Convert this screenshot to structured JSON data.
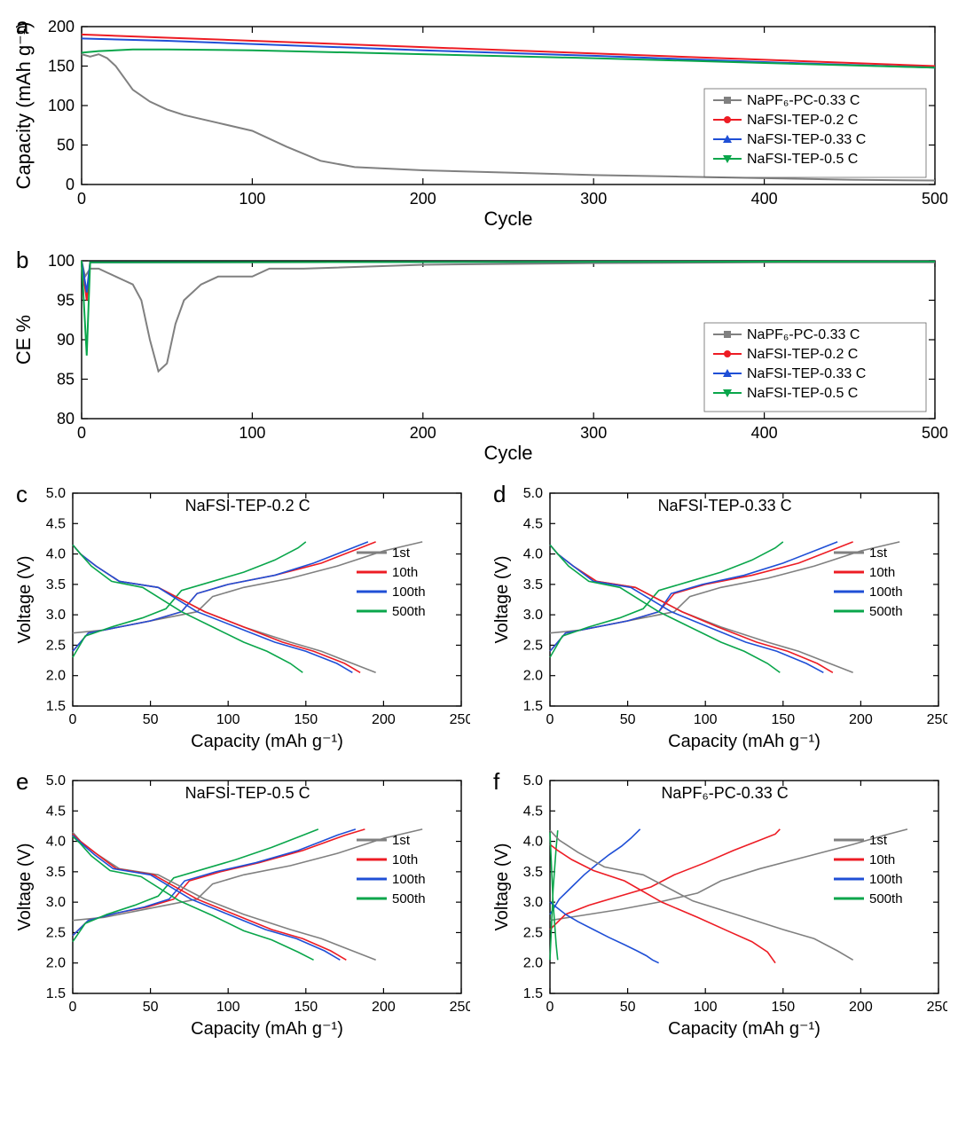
{
  "colors": {
    "gray": "#808080",
    "red": "#ed1c24",
    "blue": "#1f4fd6",
    "green": "#0aa64b",
    "axis": "#000000",
    "bg": "#ffffff"
  },
  "panel_a": {
    "type": "line",
    "label": "a",
    "xlabel": "Cycle",
    "ylabel": "Capacity (mAh g⁻¹)",
    "xlim": [
      0,
      500
    ],
    "xtick_step": 100,
    "ylim": [
      0,
      200
    ],
    "ytick_step": 50,
    "legend": [
      {
        "label": "NaPF₆-PC-0.33 C",
        "color": "#808080",
        "marker": "square"
      },
      {
        "label": "NaFSI-TEP-0.2 C",
        "color": "#ed1c24",
        "marker": "circle"
      },
      {
        "label": "NaFSI-TEP-0.33 C",
        "color": "#1f4fd6",
        "marker": "triangle-up"
      },
      {
        "label": "NaFSI-TEP-0.5 C",
        "color": "#0aa64b",
        "marker": "triangle-down"
      }
    ],
    "series": {
      "napf6_pc_033": {
        "color": "#808080",
        "x": [
          0,
          5,
          10,
          15,
          20,
          25,
          30,
          40,
          50,
          60,
          80,
          100,
          120,
          140,
          160,
          200,
          250,
          300,
          350,
          400,
          450,
          500
        ],
        "y": [
          165,
          162,
          165,
          160,
          150,
          135,
          120,
          105,
          95,
          88,
          78,
          68,
          48,
          30,
          22,
          18,
          15,
          12,
          10,
          8,
          6,
          5
        ]
      },
      "nafsi_tep_02": {
        "color": "#ed1c24",
        "x": [
          0,
          50,
          100,
          200,
          300,
          400,
          500
        ],
        "y": [
          190,
          186,
          182,
          174,
          166,
          158,
          150
        ]
      },
      "nafsi_tep_033": {
        "color": "#1f4fd6",
        "x": [
          0,
          50,
          100,
          200,
          300,
          400,
          500
        ],
        "y": [
          185,
          182,
          178,
          170,
          163,
          155,
          148
        ]
      },
      "nafsi_tep_05": {
        "color": "#0aa64b",
        "x": [
          0,
          10,
          30,
          50,
          100,
          200,
          300,
          400,
          500
        ],
        "y": [
          167,
          169,
          171,
          171,
          170,
          165,
          160,
          154,
          148
        ]
      }
    },
    "label_fontsize": 22,
    "tick_fontsize": 18
  },
  "panel_b": {
    "type": "line",
    "label": "b",
    "xlabel": "Cycle",
    "ylabel": "CE %",
    "xlim": [
      0,
      500
    ],
    "xtick_step": 100,
    "ylim": [
      80,
      100
    ],
    "ytick_step": 5,
    "yticks": [
      80,
      85,
      90,
      95,
      100
    ],
    "legend": [
      {
        "label": "NaPF₆-PC-0.33 C",
        "color": "#808080",
        "marker": "square"
      },
      {
        "label": "NaFSI-TEP-0.2 C",
        "color": "#ed1c24",
        "marker": "circle"
      },
      {
        "label": "NaFSI-TEP-0.33 C",
        "color": "#1f4fd6",
        "marker": "triangle-up"
      },
      {
        "label": "NaFSI-TEP-0.5 C",
        "color": "#0aa64b",
        "marker": "triangle-down"
      }
    ],
    "series": {
      "napf6_pc_033": {
        "color": "#808080",
        "x": [
          0,
          2,
          5,
          10,
          15,
          20,
          25,
          30,
          35,
          40,
          45,
          50,
          55,
          60,
          70,
          80,
          90,
          100,
          110,
          130,
          200,
          300,
          400,
          500
        ],
        "y": [
          100,
          98,
          99,
          99,
          98.5,
          98,
          97.5,
          97,
          95,
          90,
          86,
          87,
          92,
          95,
          97,
          98,
          98,
          98,
          99,
          99,
          99.5,
          99.7,
          99.8,
          99.8
        ]
      },
      "nafsi_tep_02": {
        "color": "#ed1c24",
        "x": [
          0,
          3,
          5,
          500
        ],
        "y": [
          100,
          95,
          99.8,
          99.9
        ]
      },
      "nafsi_tep_033": {
        "color": "#1f4fd6",
        "x": [
          0,
          3,
          5,
          500
        ],
        "y": [
          100,
          96,
          99.8,
          99.9
        ]
      },
      "nafsi_tep_05": {
        "color": "#0aa64b",
        "x": [
          0,
          3,
          5,
          500
        ],
        "y": [
          100,
          88,
          99.8,
          99.9
        ]
      }
    },
    "label_fontsize": 22,
    "tick_fontsize": 18
  },
  "small_common": {
    "type": "line",
    "xlabel": "Capacity (mAh g⁻¹)",
    "ylabel": "Voltage (V)",
    "xlim": [
      0,
      250
    ],
    "xtick_step": 50,
    "ylim": [
      1.5,
      5.0
    ],
    "ytick_step": 0.5,
    "legend": [
      {
        "label": "1st",
        "color": "#808080"
      },
      {
        "label": "10th",
        "color": "#ed1c24"
      },
      {
        "label": "100th",
        "color": "#1f4fd6"
      },
      {
        "label": "500th",
        "color": "#0aa64b"
      }
    ],
    "label_fontsize": 20,
    "tick_fontsize": 16
  },
  "panel_c": {
    "label": "c",
    "title": "NaFSI-TEP-0.2 C",
    "charge": {
      "1st": {
        "color": "#808080",
        "x": [
          0,
          20,
          40,
          60,
          80,
          90,
          110,
          140,
          170,
          200,
          225
        ],
        "y": [
          2.7,
          2.75,
          2.85,
          2.95,
          3.05,
          3.3,
          3.45,
          3.6,
          3.8,
          4.05,
          4.2
        ]
      },
      "10th": {
        "color": "#ed1c24",
        "x": [
          0,
          10,
          30,
          50,
          70,
          80,
          100,
          130,
          160,
          185,
          195
        ],
        "y": [
          2.4,
          2.7,
          2.8,
          2.9,
          3.05,
          3.35,
          3.5,
          3.65,
          3.85,
          4.1,
          4.2
        ]
      },
      "100th": {
        "color": "#1f4fd6",
        "x": [
          0,
          10,
          30,
          50,
          70,
          80,
          100,
          130,
          155,
          180,
          190
        ],
        "y": [
          2.4,
          2.7,
          2.8,
          2.9,
          3.05,
          3.35,
          3.5,
          3.65,
          3.85,
          4.1,
          4.2
        ]
      },
      "500th": {
        "color": "#0aa64b",
        "x": [
          0,
          8,
          25,
          45,
          60,
          70,
          90,
          110,
          130,
          145,
          150
        ],
        "y": [
          2.3,
          2.65,
          2.8,
          2.95,
          3.1,
          3.4,
          3.55,
          3.7,
          3.9,
          4.1,
          4.2
        ]
      }
    },
    "discharge": {
      "1st": {
        "color": "#808080",
        "x": [
          0,
          5,
          15,
          30,
          55,
          85,
          110,
          140,
          160,
          180,
          195
        ],
        "y": [
          4.15,
          4.0,
          3.8,
          3.55,
          3.45,
          3.05,
          2.8,
          2.55,
          2.4,
          2.2,
          2.05
        ]
      },
      "10th": {
        "color": "#ed1c24",
        "x": [
          0,
          5,
          15,
          30,
          55,
          85,
          110,
          135,
          155,
          175,
          185
        ],
        "y": [
          4.15,
          4.0,
          3.8,
          3.55,
          3.45,
          3.05,
          2.8,
          2.55,
          2.4,
          2.2,
          2.05
        ]
      },
      "100th": {
        "color": "#1f4fd6",
        "x": [
          0,
          5,
          15,
          30,
          55,
          80,
          105,
          130,
          150,
          170,
          180
        ],
        "y": [
          4.15,
          4.0,
          3.8,
          3.55,
          3.45,
          3.05,
          2.8,
          2.55,
          2.4,
          2.2,
          2.05
        ]
      },
      "500th": {
        "color": "#0aa64b",
        "x": [
          0,
          5,
          12,
          25,
          45,
          70,
          90,
          110,
          125,
          140,
          148
        ],
        "y": [
          4.15,
          4.0,
          3.8,
          3.55,
          3.45,
          3.05,
          2.8,
          2.55,
          2.4,
          2.2,
          2.05
        ]
      }
    }
  },
  "panel_d": {
    "label": "d",
    "title": "NaFSI-TEP-0.33 C",
    "charge": {
      "1st": {
        "color": "#808080",
        "x": [
          0,
          20,
          40,
          60,
          80,
          90,
          110,
          140,
          170,
          200,
          225
        ],
        "y": [
          2.7,
          2.75,
          2.85,
          2.95,
          3.05,
          3.3,
          3.45,
          3.6,
          3.8,
          4.05,
          4.2
        ]
      },
      "10th": {
        "color": "#ed1c24",
        "x": [
          0,
          10,
          30,
          50,
          70,
          80,
          100,
          130,
          160,
          185,
          195
        ],
        "y": [
          2.4,
          2.7,
          2.8,
          2.9,
          3.05,
          3.35,
          3.5,
          3.65,
          3.85,
          4.1,
          4.2
        ]
      },
      "100th": {
        "color": "#1f4fd6",
        "x": [
          0,
          10,
          30,
          50,
          70,
          78,
          98,
          125,
          150,
          175,
          185
        ],
        "y": [
          2.4,
          2.7,
          2.8,
          2.9,
          3.05,
          3.35,
          3.5,
          3.65,
          3.85,
          4.1,
          4.2
        ]
      },
      "500th": {
        "color": "#0aa64b",
        "x": [
          0,
          8,
          25,
          45,
          60,
          70,
          90,
          110,
          130,
          145,
          150
        ],
        "y": [
          2.3,
          2.65,
          2.8,
          2.95,
          3.1,
          3.4,
          3.55,
          3.7,
          3.9,
          4.1,
          4.2
        ]
      }
    },
    "discharge": {
      "1st": {
        "color": "#808080",
        "x": [
          0,
          5,
          15,
          30,
          55,
          85,
          110,
          140,
          160,
          180,
          195
        ],
        "y": [
          4.15,
          4.0,
          3.8,
          3.55,
          3.45,
          3.05,
          2.8,
          2.55,
          2.4,
          2.2,
          2.05
        ]
      },
      "10th": {
        "color": "#ed1c24",
        "x": [
          0,
          5,
          15,
          30,
          55,
          85,
          108,
          133,
          153,
          172,
          182
        ],
        "y": [
          4.15,
          4.0,
          3.8,
          3.55,
          3.45,
          3.05,
          2.8,
          2.55,
          2.4,
          2.2,
          2.05
        ]
      },
      "100th": {
        "color": "#1f4fd6",
        "x": [
          0,
          5,
          15,
          28,
          52,
          78,
          102,
          126,
          146,
          165,
          176
        ],
        "y": [
          4.15,
          4.0,
          3.8,
          3.55,
          3.45,
          3.05,
          2.8,
          2.55,
          2.4,
          2.2,
          2.05
        ]
      },
      "500th": {
        "color": "#0aa64b",
        "x": [
          0,
          5,
          12,
          25,
          45,
          70,
          90,
          110,
          125,
          140,
          148
        ],
        "y": [
          4.15,
          4.0,
          3.8,
          3.55,
          3.45,
          3.05,
          2.8,
          2.55,
          2.4,
          2.2,
          2.05
        ]
      }
    }
  },
  "panel_e": {
    "label": "e",
    "title": "NaFSI-TEP-0.5 C",
    "charge": {
      "1st": {
        "color": "#808080",
        "x": [
          0,
          20,
          40,
          60,
          80,
          90,
          110,
          140,
          170,
          200,
          225
        ],
        "y": [
          2.7,
          2.75,
          2.85,
          2.95,
          3.05,
          3.3,
          3.45,
          3.6,
          3.8,
          4.05,
          4.2
        ]
      },
      "10th": {
        "color": "#ed1c24",
        "x": [
          0,
          10,
          28,
          48,
          65,
          75,
          95,
          120,
          148,
          175,
          188
        ],
        "y": [
          2.45,
          2.7,
          2.82,
          2.92,
          3.05,
          3.35,
          3.5,
          3.65,
          3.85,
          4.1,
          4.2
        ]
      },
      "100th": {
        "color": "#1f4fd6",
        "x": [
          0,
          10,
          28,
          46,
          62,
          72,
          92,
          118,
          145,
          170,
          182
        ],
        "y": [
          2.45,
          2.7,
          2.82,
          2.92,
          3.05,
          3.35,
          3.5,
          3.65,
          3.85,
          4.1,
          4.2
        ]
      },
      "500th": {
        "color": "#0aa64b",
        "x": [
          0,
          8,
          22,
          40,
          55,
          65,
          85,
          105,
          128,
          148,
          158
        ],
        "y": [
          2.35,
          2.65,
          2.8,
          2.95,
          3.1,
          3.4,
          3.55,
          3.7,
          3.9,
          4.1,
          4.2
        ]
      }
    },
    "discharge": {
      "1st": {
        "color": "#808080",
        "x": [
          0,
          5,
          15,
          30,
          55,
          85,
          110,
          140,
          160,
          180,
          195
        ],
        "y": [
          4.15,
          4.0,
          3.8,
          3.55,
          3.45,
          3.05,
          2.8,
          2.55,
          2.4,
          2.2,
          2.05
        ]
      },
      "10th": {
        "color": "#ed1c24",
        "x": [
          0,
          5,
          15,
          28,
          52,
          80,
          104,
          128,
          148,
          166,
          176
        ],
        "y": [
          4.12,
          4.0,
          3.8,
          3.55,
          3.45,
          3.05,
          2.8,
          2.55,
          2.4,
          2.2,
          2.05
        ]
      },
      "100th": {
        "color": "#1f4fd6",
        "x": [
          0,
          5,
          14,
          26,
          50,
          76,
          100,
          124,
          144,
          162,
          172
        ],
        "y": [
          4.1,
          3.98,
          3.78,
          3.55,
          3.45,
          3.05,
          2.8,
          2.55,
          2.4,
          2.2,
          2.05
        ]
      },
      "500th": {
        "color": "#0aa64b",
        "x": [
          0,
          5,
          12,
          24,
          44,
          68,
          90,
          110,
          128,
          145,
          155
        ],
        "y": [
          4.08,
          3.96,
          3.76,
          3.52,
          3.42,
          3.03,
          2.78,
          2.53,
          2.38,
          2.18,
          2.05
        ]
      }
    }
  },
  "panel_f": {
    "label": "f",
    "title": "NaPF₆-PC-0.33 C",
    "charge": {
      "1st": {
        "color": "#808080",
        "x": [
          0,
          20,
          45,
          70,
          95,
          110,
          135,
          165,
          195,
          215,
          230
        ],
        "y": [
          2.7,
          2.78,
          2.88,
          3.0,
          3.15,
          3.35,
          3.55,
          3.75,
          3.95,
          4.1,
          4.2
        ]
      },
      "10th": {
        "color": "#ed1c24",
        "x": [
          0,
          10,
          25,
          45,
          65,
          80,
          100,
          118,
          135,
          145,
          148
        ],
        "y": [
          2.55,
          2.8,
          2.95,
          3.1,
          3.25,
          3.45,
          3.65,
          3.85,
          4.02,
          4.12,
          4.2
        ]
      },
      "100th": {
        "color": "#1f4fd6",
        "x": [
          0,
          6,
          14,
          22,
          30,
          38,
          46,
          52,
          56,
          58
        ],
        "y": [
          2.8,
          3.05,
          3.25,
          3.45,
          3.62,
          3.78,
          3.92,
          4.05,
          4.15,
          4.2
        ]
      },
      "500th": {
        "color": "#0aa64b",
        "x": [
          0,
          2,
          4,
          5
        ],
        "y": [
          2.05,
          3.2,
          3.9,
          4.18
        ]
      }
    },
    "discharge": {
      "1st": {
        "color": "#808080",
        "x": [
          0,
          6,
          18,
          35,
          60,
          92,
          122,
          150,
          170,
          185,
          195
        ],
        "y": [
          4.18,
          4.02,
          3.82,
          3.58,
          3.45,
          3.02,
          2.78,
          2.55,
          2.4,
          2.2,
          2.05
        ]
      },
      "10th": {
        "color": "#ed1c24",
        "x": [
          0,
          5,
          14,
          28,
          48,
          72,
          95,
          115,
          130,
          140,
          145
        ],
        "y": [
          3.95,
          3.85,
          3.7,
          3.52,
          3.35,
          3.0,
          2.75,
          2.52,
          2.35,
          2.18,
          2.0
        ]
      },
      "100th": {
        "color": "#1f4fd6",
        "x": [
          0,
          4,
          10,
          18,
          28,
          38,
          48,
          56,
          62,
          66,
          70
        ],
        "y": [
          3.0,
          2.92,
          2.8,
          2.68,
          2.55,
          2.42,
          2.3,
          2.2,
          2.12,
          2.05,
          2.0
        ]
      },
      "500th": {
        "color": "#0aa64b",
        "x": [
          0,
          2,
          4,
          5
        ],
        "y": [
          4.15,
          3.0,
          2.3,
          2.05
        ]
      }
    }
  }
}
